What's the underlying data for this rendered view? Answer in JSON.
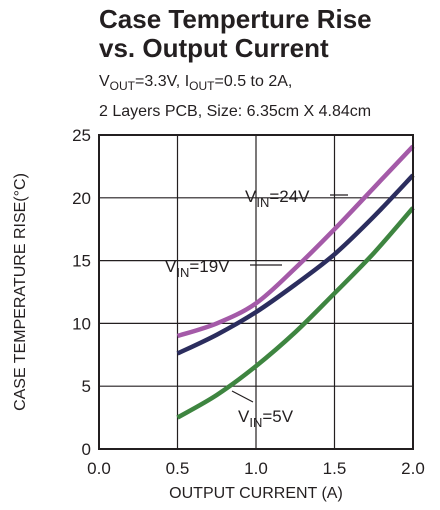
{
  "chart_data": {
    "type": "line",
    "title_line1": "Case Temperture Rise",
    "title_line2": "vs. Output Current",
    "subtitle_line1": {
      "v": "V",
      "v_sub": "OUT",
      "v_val": "=3.3V, ",
      "i": "I",
      "i_sub": "OUT",
      "i_val": "=0.5 to 2A,"
    },
    "subtitle_line2": "2 Layers PCB, Size: 6.35cm X 4.84cm",
    "xlabel": "OUTPUT CURRENT (A)",
    "ylabel": "CASE TEMPERATURE RISE(°C)",
    "xlim": [
      0,
      2
    ],
    "ylim": [
      0,
      25
    ],
    "x_ticks": [
      "0.0",
      "0.5",
      "1.0",
      "1.5",
      "2.0"
    ],
    "y_ticks": [
      "0",
      "5",
      "10",
      "15",
      "20",
      "25"
    ],
    "grid": true,
    "series": [
      {
        "label_prefix": "V",
        "label_sub": "IN",
        "label_value": "=24V",
        "color": "#a45aa8",
        "x": [
          0.5,
          0.75,
          1.0,
          1.25,
          1.5,
          1.75,
          2.0
        ],
        "y": [
          9.0,
          10.0,
          11.6,
          14.4,
          17.5,
          20.8,
          24.1
        ]
      },
      {
        "label_prefix": "V",
        "label_sub": "IN",
        "label_value": "=19V",
        "color": "#2b2d5e",
        "x": [
          0.5,
          0.75,
          1.0,
          1.25,
          1.5,
          1.75,
          2.0
        ],
        "y": [
          7.6,
          9.1,
          10.9,
          13.1,
          15.5,
          18.5,
          21.8
        ]
      },
      {
        "label_prefix": "V",
        "label_sub": "IN",
        "label_value": "=5V",
        "color": "#3e8540",
        "x": [
          0.5,
          0.75,
          1.0,
          1.25,
          1.5,
          1.75,
          2.0
        ],
        "y": [
          2.5,
          4.3,
          6.6,
          9.3,
          12.4,
          15.6,
          19.2
        ]
      }
    ]
  }
}
